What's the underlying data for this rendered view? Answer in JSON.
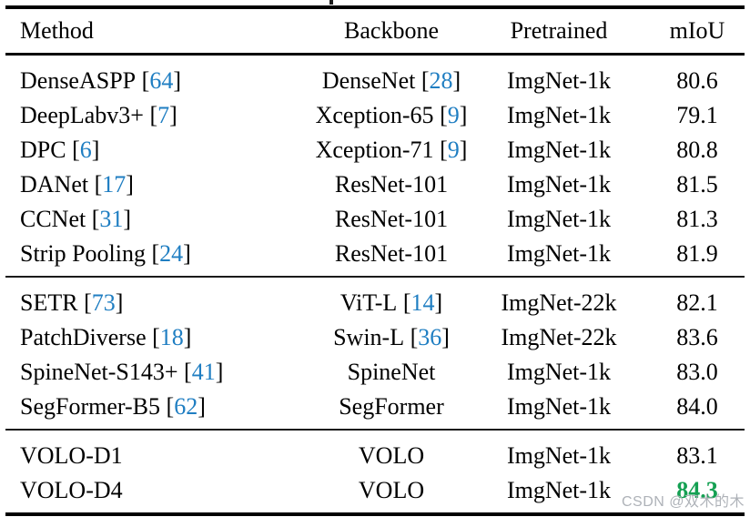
{
  "caption_fragment": "p",
  "table": {
    "columns": [
      "Method",
      "Backbone",
      "Pretrained",
      "mIoU"
    ],
    "groups": [
      {
        "rows": [
          {
            "method": "DenseASPP",
            "method_ref": "64",
            "backbone": "DenseNet",
            "backbone_ref": "28",
            "pretrained": "ImgNet-1k",
            "miou": "80.6"
          },
          {
            "method": "DeepLabv3+",
            "method_ref": "7",
            "backbone": "Xception-65",
            "backbone_ref": "9",
            "pretrained": "ImgNet-1k",
            "miou": "79.1"
          },
          {
            "method": "DPC",
            "method_ref": "6",
            "backbone": "Xception-71",
            "backbone_ref": "9",
            "pretrained": "ImgNet-1k",
            "miou": "80.8"
          },
          {
            "method": "DANet",
            "method_ref": "17",
            "backbone": "ResNet-101",
            "backbone_ref": null,
            "pretrained": "ImgNet-1k",
            "miou": "81.5"
          },
          {
            "method": "CCNet",
            "method_ref": "31",
            "backbone": "ResNet-101",
            "backbone_ref": null,
            "pretrained": "ImgNet-1k",
            "miou": "81.3"
          },
          {
            "method": "Strip Pooling",
            "method_ref": "24",
            "backbone": "ResNet-101",
            "backbone_ref": null,
            "pretrained": "ImgNet-1k",
            "miou": "81.9"
          }
        ]
      },
      {
        "rows": [
          {
            "method": "SETR",
            "method_ref": "73",
            "backbone": "ViT-L",
            "backbone_ref": "14",
            "pretrained": "ImgNet-22k",
            "miou": "82.1"
          },
          {
            "method": "PatchDiverse",
            "method_ref": "18",
            "backbone": "Swin-L",
            "backbone_ref": "36",
            "pretrained": "ImgNet-22k",
            "miou": "83.6"
          },
          {
            "method": "SpineNet-S143+",
            "method_ref": "41",
            "backbone": "SpineNet",
            "backbone_ref": null,
            "pretrained": "ImgNet-1k",
            "miou": "83.0"
          },
          {
            "method": "SegFormer-B5",
            "method_ref": "62",
            "backbone": "SegFormer",
            "backbone_ref": null,
            "pretrained": "ImgNet-1k",
            "miou": "84.0"
          }
        ]
      },
      {
        "rows": [
          {
            "method": "VOLO-D1",
            "method_ref": null,
            "backbone": "VOLO",
            "backbone_ref": null,
            "pretrained": "ImgNet-1k",
            "miou": "83.1"
          },
          {
            "method": "VOLO-D4",
            "method_ref": null,
            "backbone": "VOLO",
            "backbone_ref": null,
            "pretrained": "ImgNet-1k",
            "miou": "84.3",
            "highlight": true
          }
        ]
      }
    ]
  },
  "watermark": "CSDN @双木的木",
  "colors": {
    "citation": "#1F7EC2",
    "highlight": "#14A052",
    "watermark": "#AEB2B8"
  }
}
